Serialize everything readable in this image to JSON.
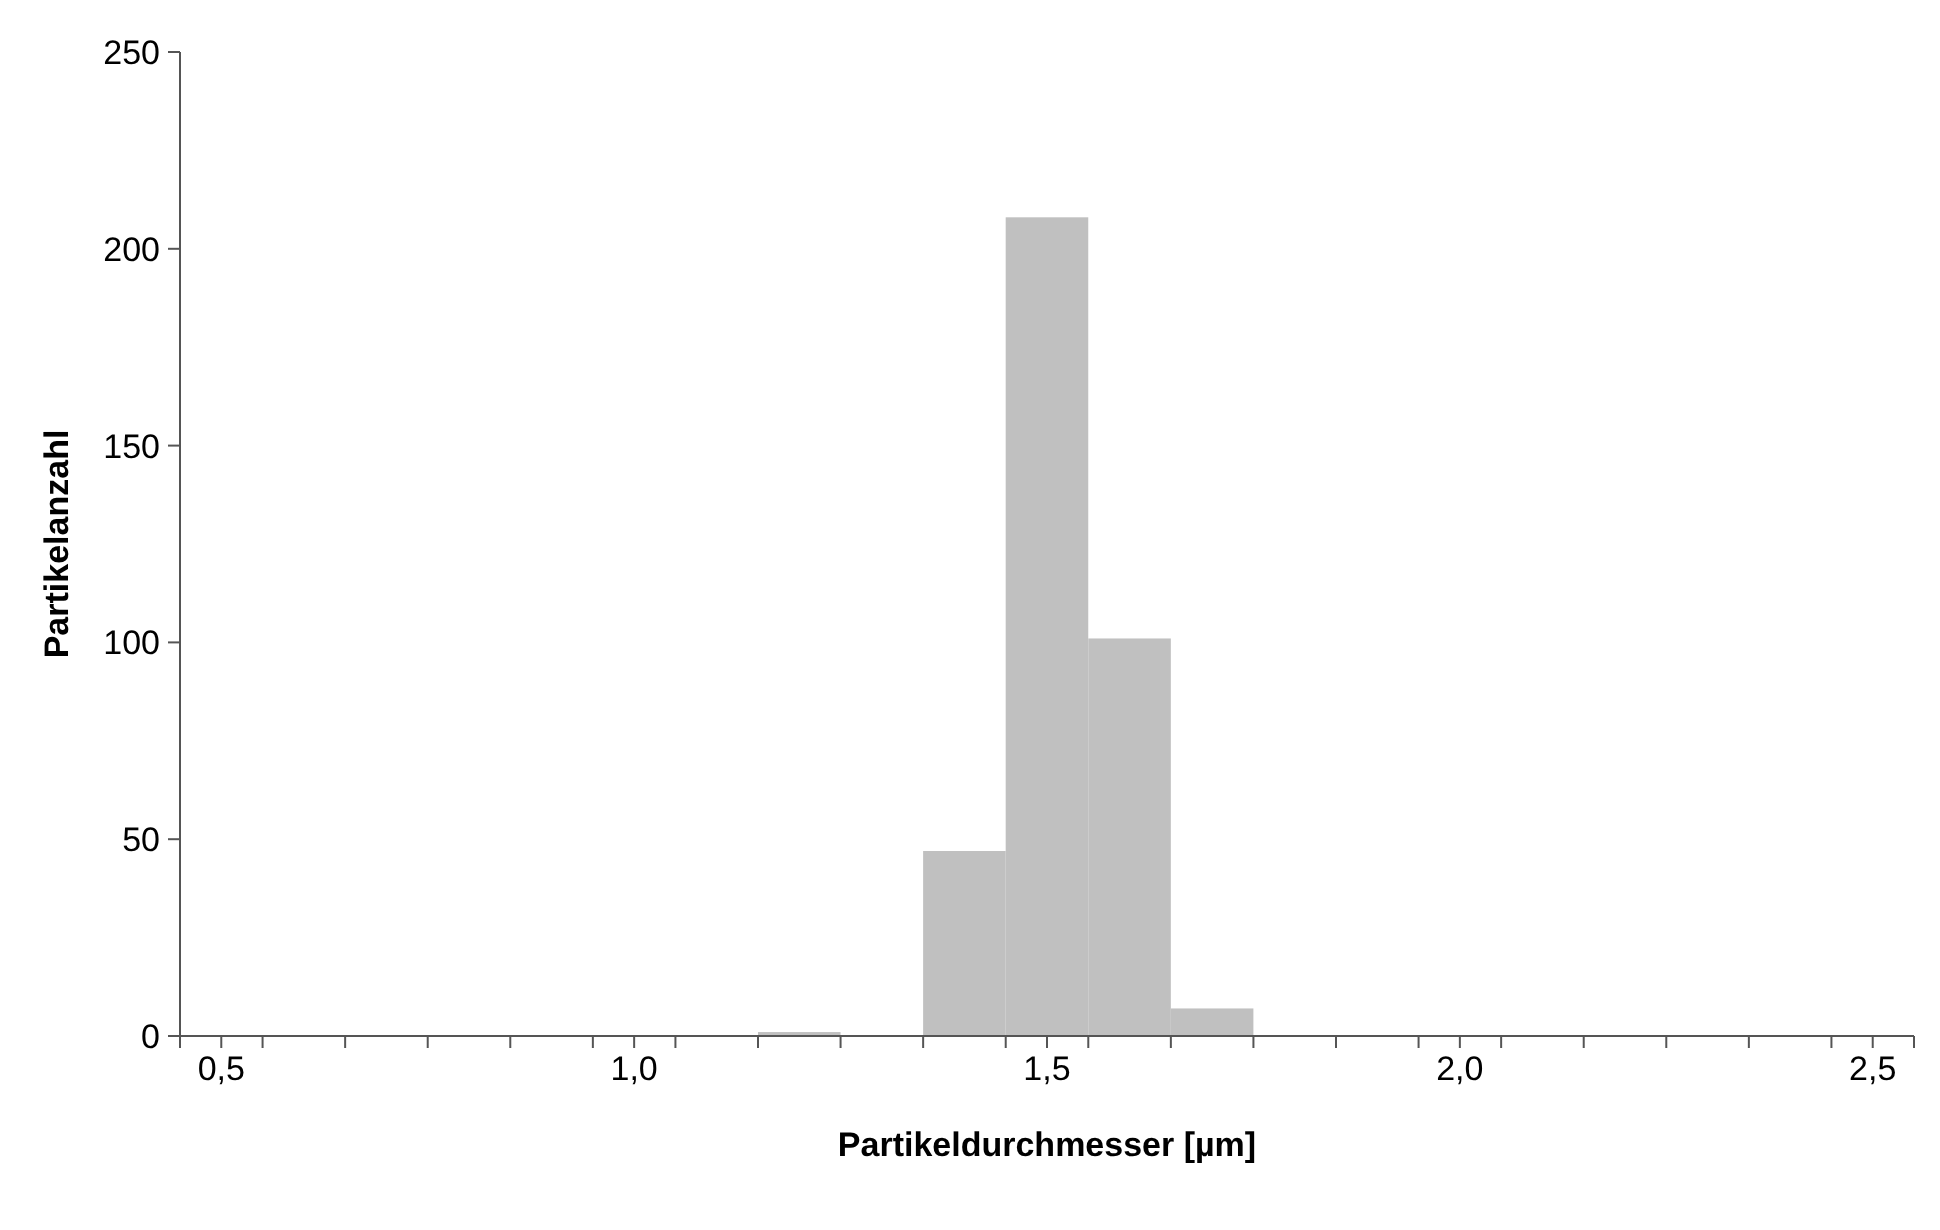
{
  "chart_data": {
    "type": "histogram",
    "xlabel": "Partikeldurchmesser [µm]",
    "ylabel": "Partikelanzahl",
    "bins": [
      0.45,
      0.55,
      0.65,
      0.75,
      0.85,
      0.95,
      1.05,
      1.15,
      1.25,
      1.35,
      1.45,
      1.55,
      1.65,
      1.75,
      1.85,
      1.95,
      2.05,
      2.15,
      2.25,
      2.35,
      2.45,
      2.55
    ],
    "values": [
      0,
      0,
      0,
      0,
      0,
      0,
      0,
      1,
      0,
      47,
      208,
      101,
      7,
      0,
      0,
      0,
      0,
      0,
      0,
      0,
      0
    ],
    "color": "#c0c0c0",
    "xlim": [
      0.45,
      2.55
    ],
    "xticks": [
      {
        "value": 0.45,
        "label": null
      },
      {
        "value": 0.5,
        "label": "0,5"
      },
      {
        "value": 0.55,
        "label": null
      },
      {
        "value": 0.65,
        "label": null
      },
      {
        "value": 0.75,
        "label": null
      },
      {
        "value": 0.85,
        "label": null
      },
      {
        "value": 0.95,
        "label": null
      },
      {
        "value": 1.0,
        "label": "1,0"
      },
      {
        "value": 1.05,
        "label": null
      },
      {
        "value": 1.15,
        "label": null
      },
      {
        "value": 1.25,
        "label": null
      },
      {
        "value": 1.35,
        "label": null
      },
      {
        "value": 1.45,
        "label": null
      },
      {
        "value": 1.5,
        "label": "1,5"
      },
      {
        "value": 1.55,
        "label": null
      },
      {
        "value": 1.65,
        "label": null
      },
      {
        "value": 1.75,
        "label": null
      },
      {
        "value": 1.85,
        "label": null
      },
      {
        "value": 1.95,
        "label": null
      },
      {
        "value": 2.0,
        "label": "2,0"
      },
      {
        "value": 2.05,
        "label": null
      },
      {
        "value": 2.15,
        "label": null
      },
      {
        "value": 2.25,
        "label": null
      },
      {
        "value": 2.35,
        "label": null
      },
      {
        "value": 2.45,
        "label": null
      },
      {
        "value": 2.5,
        "label": "2,5"
      },
      {
        "value": 2.55,
        "label": null
      }
    ],
    "ylim": [
      0,
      250
    ],
    "yticks": [
      0,
      50,
      100,
      150,
      200,
      250
    ],
    "grid": false,
    "legend": false
  }
}
